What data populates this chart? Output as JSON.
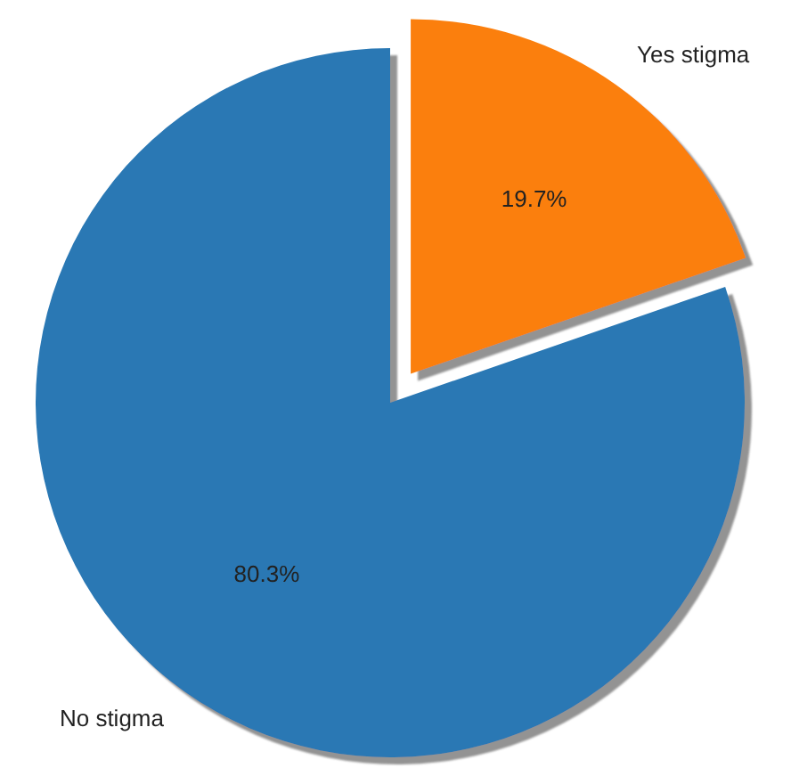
{
  "chart_data": {
    "type": "pie",
    "categories": [
      "No stigma",
      "Yes stigma"
    ],
    "values": [
      80.3,
      19.7
    ],
    "colors": [
      "#2a78b4",
      "#fb7f0e"
    ],
    "value_labels": [
      "80.3%",
      "19.7%"
    ]
  }
}
